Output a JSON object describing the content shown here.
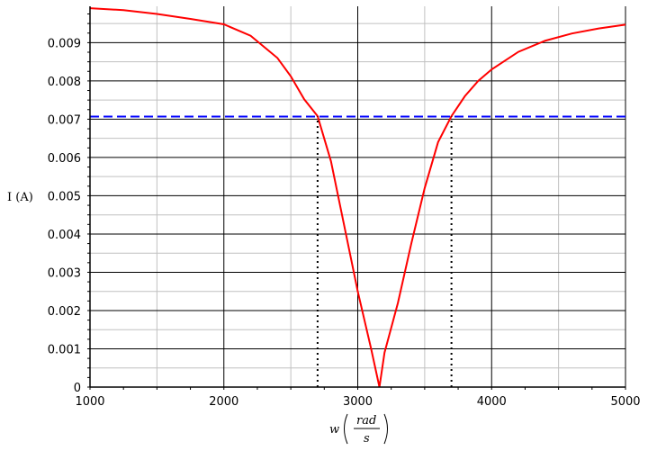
{
  "chart_data": {
    "type": "line",
    "title": "",
    "xlabel": {
      "var": "w",
      "num": "rad",
      "den": "s"
    },
    "ylabel": "I (A)",
    "xlim": [
      1000,
      5000
    ],
    "ylim": [
      0,
      0.00995
    ],
    "xticks": [
      "1000",
      "2000",
      "3000",
      "4000",
      "5000"
    ],
    "yticks": [
      "0",
      "0.001",
      "0.002",
      "0.003",
      "0.004",
      "0.005",
      "0.006",
      "0.007",
      "0.008",
      "0.009"
    ],
    "grid": true,
    "series": [
      {
        "color": "#ff0000",
        "style": "solid",
        "x": [
          1000,
          1250,
          1500,
          1750,
          2000,
          2200,
          2400,
          2500,
          2600,
          2700,
          2800,
          2900,
          3000,
          3100,
          3162,
          3200,
          3300,
          3400,
          3500,
          3600,
          3700,
          3800,
          3900,
          4000,
          4200,
          4400,
          4600,
          4800,
          5000
        ],
        "y": [
          0.0099,
          0.00985,
          0.00975,
          0.00962,
          0.00948,
          0.00918,
          0.0086,
          0.00812,
          0.00752,
          0.00708,
          0.0059,
          0.0042,
          0.0025,
          0.001,
          0.0,
          0.0009,
          0.0022,
          0.00375,
          0.0052,
          0.0064,
          0.00708,
          0.0076,
          0.008,
          0.0083,
          0.00876,
          0.00905,
          0.00924,
          0.00937,
          0.00947
        ]
      },
      {
        "color": "#0000ff",
        "style": "dashed",
        "x": [
          1000,
          5000
        ],
        "y": [
          0.00707,
          0.00707
        ]
      },
      {
        "color": "#000000",
        "style": "dotted",
        "x": [
          2700,
          2700
        ],
        "y": [
          0,
          0.00707
        ]
      },
      {
        "color": "#000000",
        "style": "dotted",
        "x": [
          3700,
          3700
        ],
        "y": [
          0,
          0.00707
        ]
      }
    ]
  }
}
